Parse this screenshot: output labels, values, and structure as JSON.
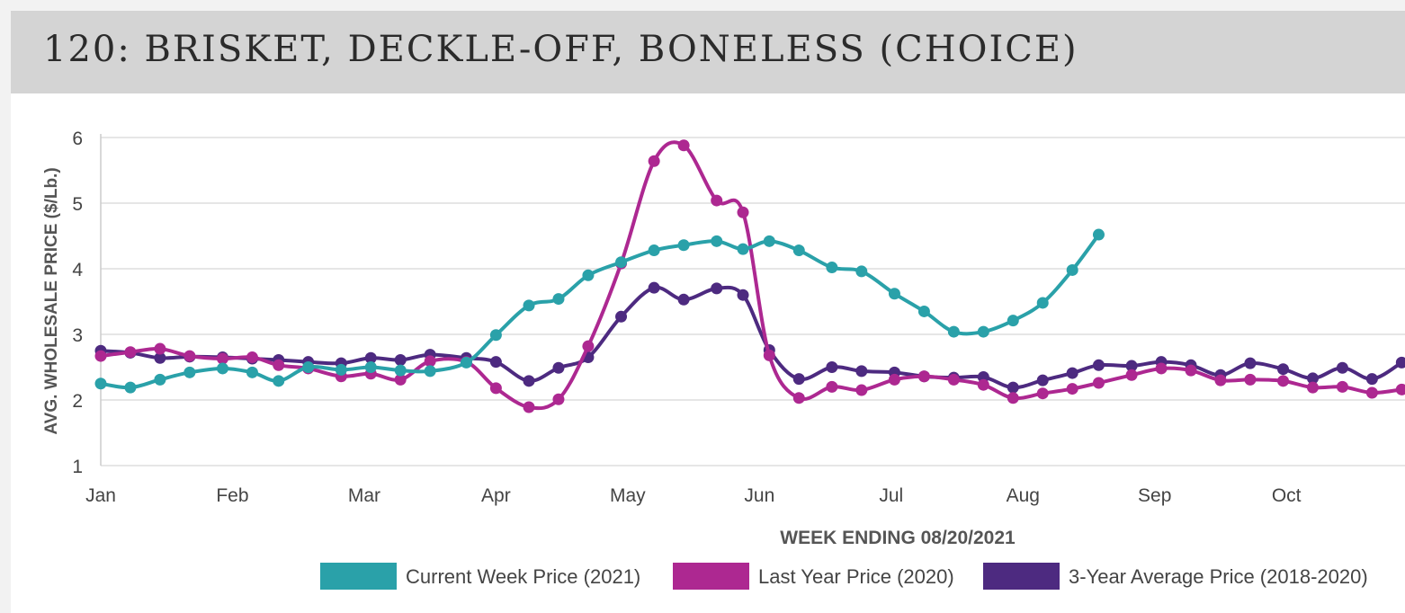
{
  "header": {
    "title": "120: BRISKET, DECKLE-OFF, BONELESS (CHOICE)"
  },
  "chart_data": {
    "type": "line",
    "title": "120: BRISKET, DECKLE-OFF, BONELESS (CHOICE)",
    "xlabel": "WEEK ENDING 08/20/2021",
    "ylabel": "AVG. WHOLESALE PRICE ($/Lb.)",
    "ylim": [
      1,
      6
    ],
    "yticks": [
      1,
      2,
      3,
      4,
      5,
      6
    ],
    "xlim": [
      0,
      39.6
    ],
    "month_ticks": [
      {
        "label": "Jan",
        "week": 0
      },
      {
        "label": "Feb",
        "week": 4
      },
      {
        "label": "Mar",
        "week": 8
      },
      {
        "label": "Apr",
        "week": 12
      },
      {
        "label": "May",
        "week": 16
      },
      {
        "label": "Jun",
        "week": 20
      },
      {
        "label": "Jul",
        "week": 24
      },
      {
        "label": "Aug",
        "week": 28
      },
      {
        "label": "Sep",
        "week": 32
      },
      {
        "label": "Oct",
        "week": 36
      }
    ],
    "grid": true,
    "legend_position": "bottom-right",
    "series": [
      {
        "name": "Current Week Price (2021)",
        "color": "#2aa1a9",
        "x": [
          0,
          0.9,
          1.8,
          2.7,
          3.7,
          4.6,
          5.4,
          6.3,
          7.3,
          8.2,
          9.1,
          10.0,
          11.1,
          12.0,
          13.0,
          13.9,
          14.8,
          15.8,
          16.8,
          17.7,
          18.7,
          19.5,
          20.3,
          21.2,
          22.2,
          23.1,
          24.1,
          25.0,
          25.9,
          26.8,
          27.7,
          28.6,
          29.5,
          30.3
        ],
        "values": [
          2.25,
          2.19,
          2.31,
          2.42,
          2.48,
          2.42,
          2.29,
          2.5,
          2.46,
          2.5,
          2.45,
          2.44,
          2.57,
          2.99,
          3.44,
          3.54,
          3.9,
          4.1,
          4.28,
          4.36,
          4.42,
          4.3,
          4.42,
          4.28,
          4.02,
          3.96,
          3.62,
          3.35,
          3.04,
          3.04,
          3.21,
          3.48,
          3.98,
          4.52
        ]
      },
      {
        "name": "Last Year Price (2020)",
        "color": "#ad2891",
        "x": [
          0,
          0.9,
          1.8,
          2.7,
          3.7,
          4.6,
          5.4,
          6.3,
          7.3,
          8.2,
          9.1,
          10.0,
          11.1,
          12.0,
          13.0,
          13.9,
          14.8,
          15.8,
          16.8,
          17.7,
          18.7,
          19.5,
          20.3,
          21.2,
          22.2,
          23.1,
          24.1,
          25.0,
          25.9,
          26.8,
          27.7,
          28.6,
          29.5,
          30.3,
          31.3,
          32.2,
          33.1,
          34.0,
          34.9,
          35.9,
          36.8,
          37.7,
          38.6,
          39.5
        ],
        "values": [
          2.67,
          2.73,
          2.78,
          2.67,
          2.63,
          2.65,
          2.53,
          2.48,
          2.36,
          2.4,
          2.31,
          2.59,
          2.58,
          2.18,
          1.89,
          2.01,
          2.82,
          4.08,
          5.64,
          5.88,
          5.04,
          4.86,
          2.68,
          2.03,
          2.2,
          2.15,
          2.31,
          2.36,
          2.31,
          2.23,
          2.03,
          2.1,
          2.17,
          2.26,
          2.38,
          2.48,
          2.45,
          2.3,
          2.31,
          2.29,
          2.19,
          2.2,
          2.11,
          2.16
        ]
      },
      {
        "name": "3-Year Average Price (2018-2020)",
        "color": "#4d2a80",
        "x": [
          0,
          0.9,
          1.8,
          2.7,
          3.7,
          4.6,
          5.4,
          6.3,
          7.3,
          8.2,
          9.1,
          10.0,
          11.1,
          12.0,
          13.0,
          13.9,
          14.8,
          15.8,
          16.8,
          17.7,
          18.7,
          19.5,
          20.3,
          21.2,
          22.2,
          23.1,
          24.1,
          25.0,
          25.9,
          26.8,
          27.7,
          28.6,
          29.5,
          30.3,
          31.3,
          32.2,
          33.1,
          34.0,
          34.9,
          35.9,
          36.8,
          37.7,
          38.6,
          39.5
        ],
        "values": [
          2.75,
          2.72,
          2.64,
          2.66,
          2.65,
          2.63,
          2.61,
          2.58,
          2.56,
          2.64,
          2.61,
          2.69,
          2.64,
          2.58,
          2.29,
          2.49,
          2.65,
          3.27,
          3.71,
          3.53,
          3.7,
          3.6,
          2.76,
          2.32,
          2.5,
          2.44,
          2.42,
          2.36,
          2.34,
          2.35,
          2.19,
          2.3,
          2.41,
          2.53,
          2.52,
          2.58,
          2.53,
          2.38,
          2.56,
          2.47,
          2.33,
          2.49,
          2.32,
          2.57
        ]
      }
    ]
  }
}
